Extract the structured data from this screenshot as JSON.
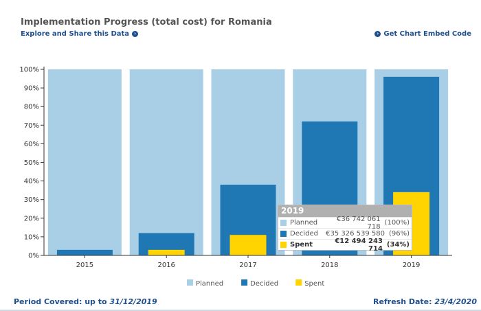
{
  "header": {
    "title": "Implementation Progress (total cost) for Romania",
    "explore_link": "Explore and Share this Data",
    "embed_link": "Get Chart Embed Code"
  },
  "chart_data": {
    "type": "bar",
    "categories": [
      "2015",
      "2016",
      "2017",
      "2018",
      "2019"
    ],
    "ylim": [
      0,
      100
    ],
    "yticks": [
      "0%",
      "10%",
      "20%",
      "30%",
      "40%",
      "50%",
      "60%",
      "70%",
      "80%",
      "90%",
      "100%"
    ],
    "series": [
      {
        "name": "Planned",
        "color": "#a8cfe6",
        "values": [
          100,
          100,
          100,
          100,
          100
        ]
      },
      {
        "name": "Decided",
        "color": "#1f77b4",
        "values": [
          3,
          12,
          38,
          72,
          96
        ]
      },
      {
        "name": "Spent",
        "color": "#ffd400",
        "values": [
          0,
          3,
          11,
          0,
          34
        ]
      }
    ],
    "legend": [
      "Planned",
      "Decided",
      "Spent"
    ]
  },
  "tooltip": {
    "year": "2019",
    "rows": [
      {
        "label": "Planned",
        "amount": "€36 742 061 718",
        "pct": "(100%)",
        "color": "#a8cfe6"
      },
      {
        "label": "Decided",
        "amount": "€35 326 539 580",
        "pct": "(96%)",
        "color": "#1f77b4"
      },
      {
        "label": "Spent",
        "amount": "€12 494 243 714",
        "pct": "(34%)",
        "color": "#ffd400"
      }
    ]
  },
  "footer": {
    "period_label": "Period Covered: up to",
    "period_value": "31/12/2019",
    "refresh_label": "Refresh Date:",
    "refresh_value": "23/4/2020"
  }
}
